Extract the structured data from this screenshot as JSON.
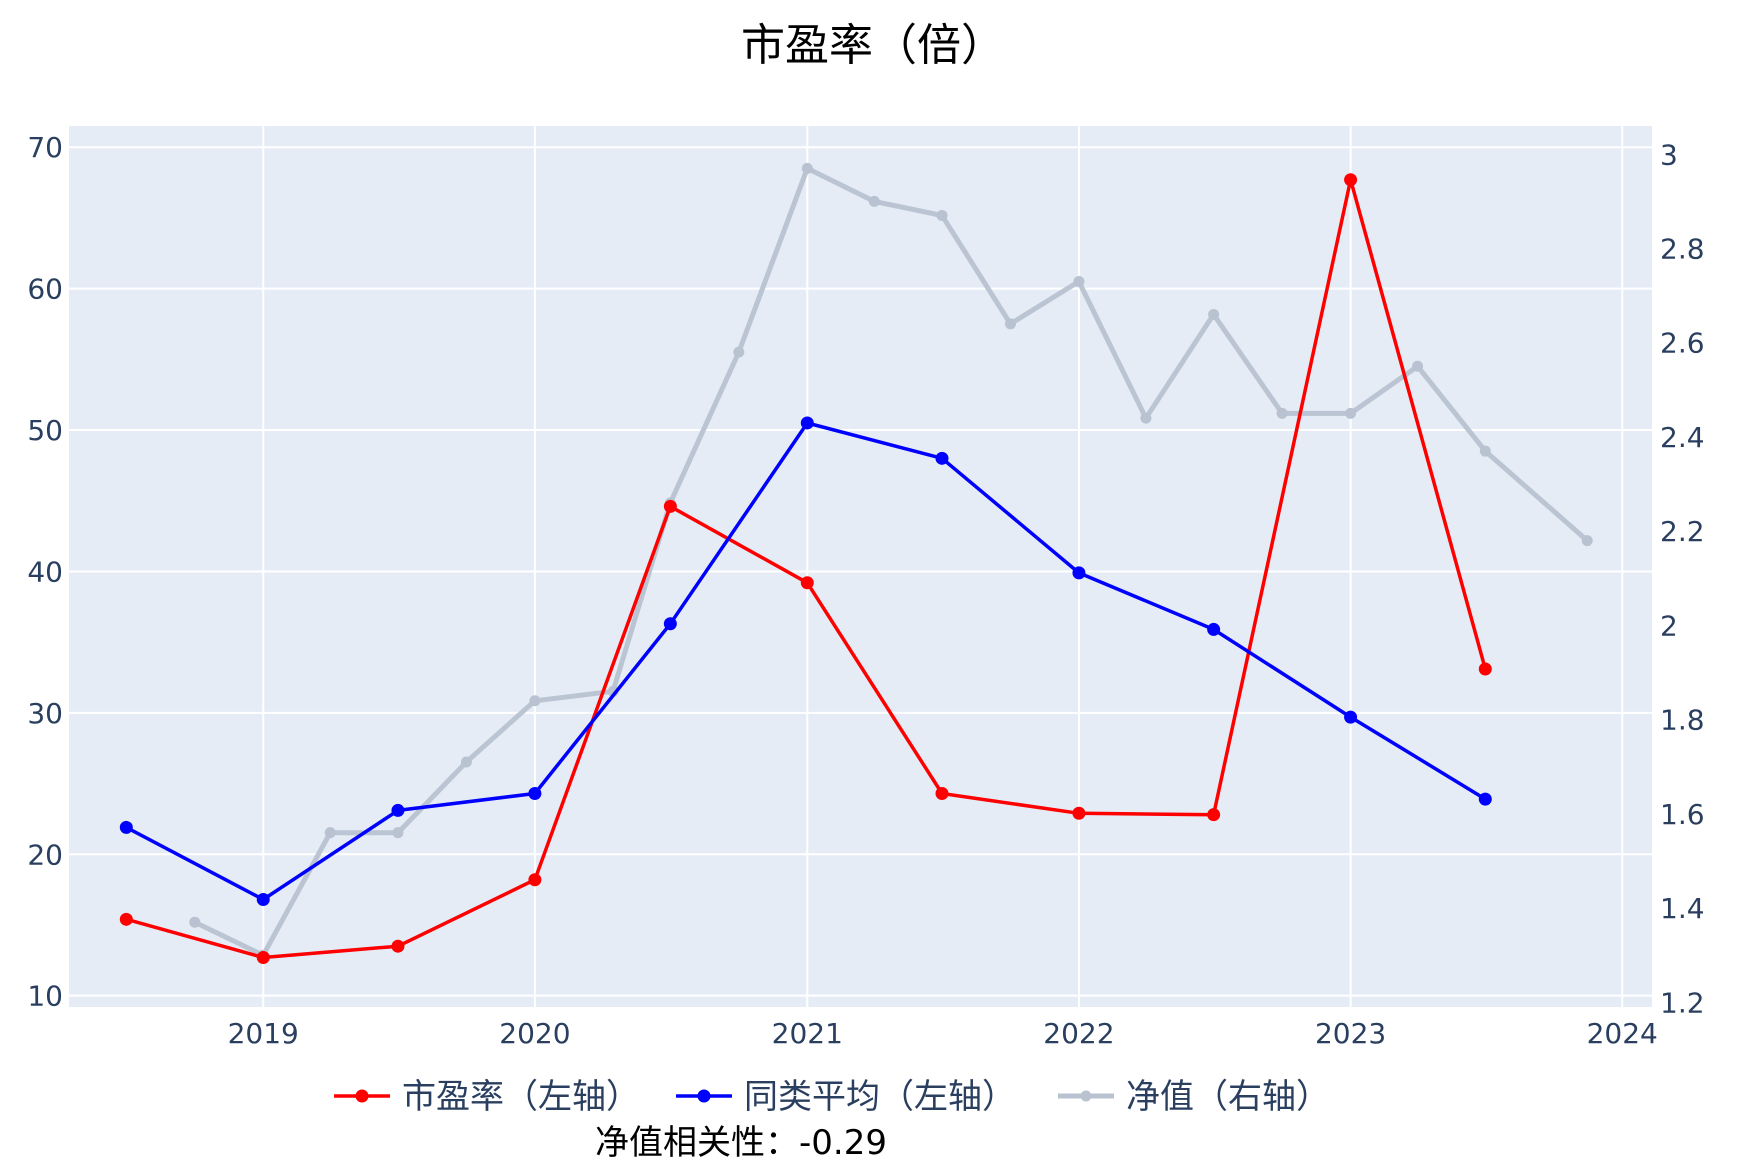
{
  "chart_data": {
    "type": "line",
    "title": "市盈率（倍）",
    "xlabel": "",
    "ylabel": "",
    "y2label": "",
    "xlim": [
      "2018-04-15",
      "2024-02-10"
    ],
    "ylim": [
      9.2,
      71.5
    ],
    "y2lim": [
      1.19,
      3.06
    ],
    "x_ticks": [
      "2019",
      "2020",
      "2021",
      "2022",
      "2023",
      "2024"
    ],
    "y_ticks": [
      10,
      20,
      30,
      40,
      50,
      60,
      70
    ],
    "y2_ticks": [
      "1.2",
      "1.4",
      "1.6",
      "1.8",
      "2",
      "2.2",
      "2.4",
      "2.6",
      "2.8",
      "3"
    ],
    "grid": true,
    "legend_position": "bottom",
    "series": [
      {
        "name": "市盈率（左轴）",
        "axis": "left",
        "color": "#ff0000",
        "points": [
          {
            "x": "2018-07-01",
            "y": 15.4
          },
          {
            "x": "2019-01-01",
            "y": 12.7
          },
          {
            "x": "2019-07-01",
            "y": 13.5
          },
          {
            "x": "2020-01-01",
            "y": 18.2
          },
          {
            "x": "2020-07-01",
            "y": 44.6
          },
          {
            "x": "2021-01-01",
            "y": 39.2
          },
          {
            "x": "2021-07-01",
            "y": 24.3
          },
          {
            "x": "2022-01-01",
            "y": 22.9
          },
          {
            "x": "2022-07-01",
            "y": 22.8
          },
          {
            "x": "2023-01-01",
            "y": 67.7
          },
          {
            "x": "2023-07-01",
            "y": 33.1
          }
        ]
      },
      {
        "name": "同类平均（左轴）",
        "axis": "left",
        "color": "#0000ff",
        "points": [
          {
            "x": "2018-07-01",
            "y": 21.9
          },
          {
            "x": "2019-01-01",
            "y": 16.8
          },
          {
            "x": "2019-07-01",
            "y": 23.1
          },
          {
            "x": "2020-01-01",
            "y": 24.3
          },
          {
            "x": "2020-07-01",
            "y": 36.3
          },
          {
            "x": "2021-01-01",
            "y": 50.5
          },
          {
            "x": "2021-07-01",
            "y": 48.0
          },
          {
            "x": "2022-01-01",
            "y": 39.9
          },
          {
            "x": "2022-07-01",
            "y": 35.9
          },
          {
            "x": "2023-01-01",
            "y": 29.7
          },
          {
            "x": "2023-07-01",
            "y": 23.9
          }
        ]
      },
      {
        "name": "净值（右轴）",
        "axis": "right",
        "color": "#b8c2d0",
        "points": [
          {
            "x": "2018-10-01",
            "y": 1.37
          },
          {
            "x": "2019-01-01",
            "y": 1.3
          },
          {
            "x": "2019-04-01",
            "y": 1.56
          },
          {
            "x": "2019-07-01",
            "y": 1.56
          },
          {
            "x": "2019-10-01",
            "y": 1.71
          },
          {
            "x": "2020-01-01",
            "y": 1.84
          },
          {
            "x": "2020-04-15",
            "y": 1.86
          },
          {
            "x": "2020-07-01",
            "y": 2.26
          },
          {
            "x": "2020-10-01",
            "y": 2.58
          },
          {
            "x": "2021-01-01",
            "y": 2.97
          },
          {
            "x": "2021-04-01",
            "y": 2.9
          },
          {
            "x": "2021-07-01",
            "y": 2.87
          },
          {
            "x": "2021-10-01",
            "y": 2.64
          },
          {
            "x": "2022-01-01",
            "y": 2.73
          },
          {
            "x": "2022-04-01",
            "y": 2.44
          },
          {
            "x": "2022-07-01",
            "y": 2.66
          },
          {
            "x": "2022-10-01",
            "y": 2.45
          },
          {
            "x": "2023-01-01",
            "y": 2.45
          },
          {
            "x": "2023-04-01",
            "y": 2.55
          },
          {
            "x": "2023-07-01",
            "y": 2.37
          },
          {
            "x": "2023-11-15",
            "y": 2.18
          }
        ]
      }
    ],
    "annotation": "净值相关性：-0.29"
  }
}
